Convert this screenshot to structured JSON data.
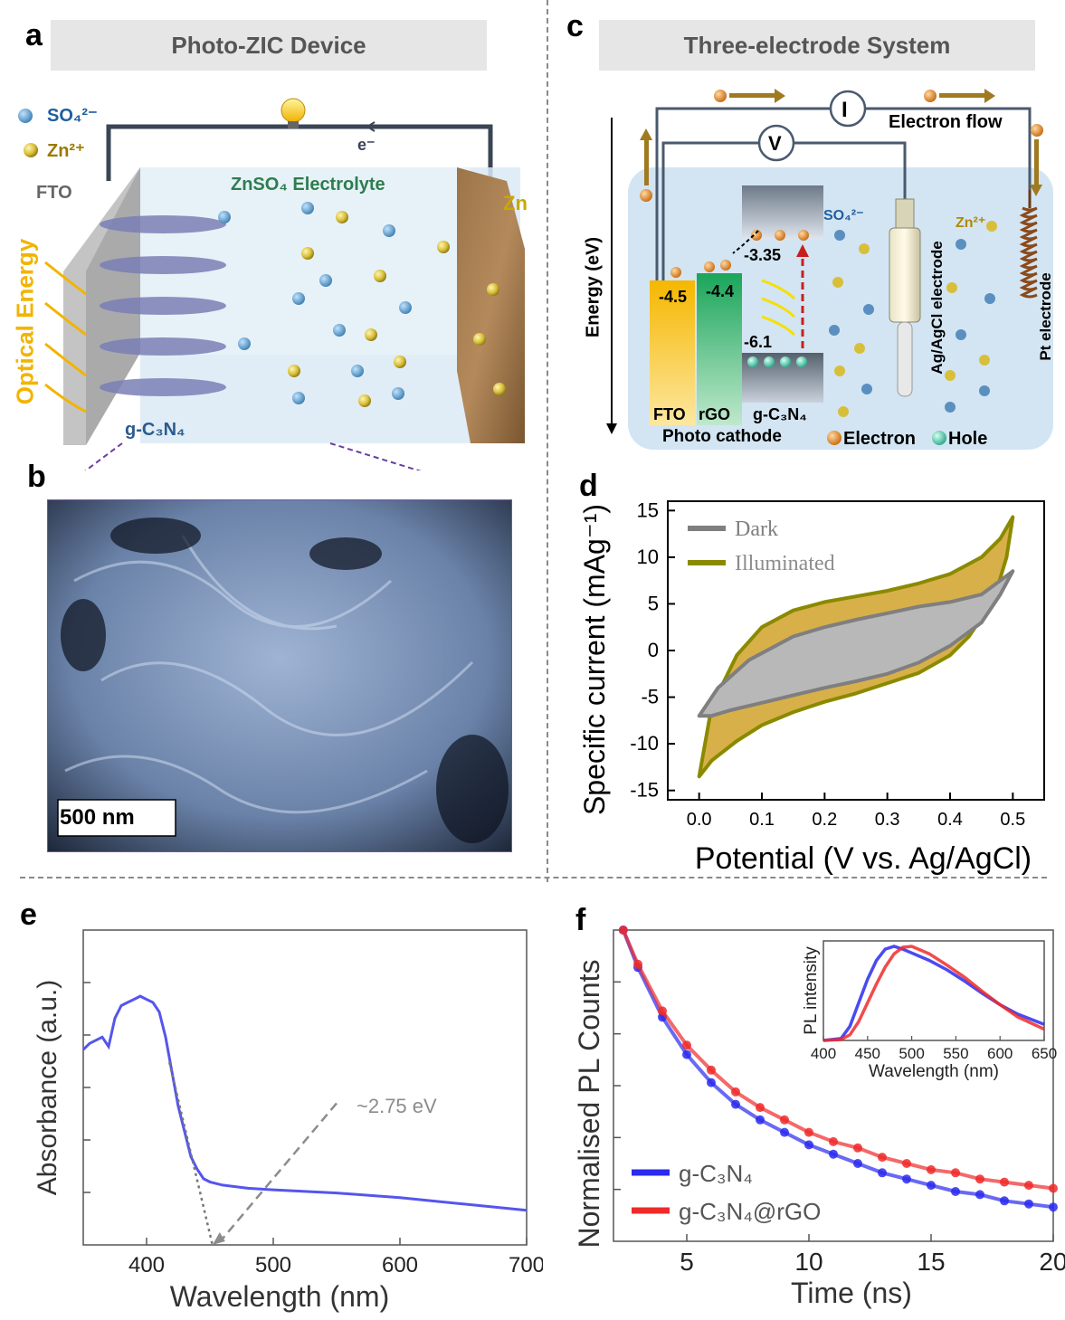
{
  "panels": {
    "a": {
      "letter": "a",
      "title": "Photo-ZIC Device",
      "legend_so4": "SO₄²⁻",
      "legend_zn": "Zn²⁺",
      "fto": "FTO",
      "electron": "e⁻",
      "electrolyte": "ZnSO₄ Electrolyte",
      "zn": "Zn",
      "optical": "Optical Energy",
      "gcn": "g-C₃N₄"
    },
    "b": {
      "letter": "b",
      "scale": "500 nm"
    },
    "c": {
      "letter": "c",
      "title": "Three-electrode System",
      "current_symbol": "I",
      "voltage_symbol": "V",
      "electron_flow": "Electron flow",
      "energy_axis": "Energy (eV)",
      "fto_level": "-4.5",
      "rgo_level": "-4.4",
      "cb_level": "-3.35",
      "vb_level": "-6.1",
      "so4": "SO₄²⁻",
      "zn": "Zn²⁺",
      "ref_electrode": "Ag/AgCl electrode",
      "pt_electrode": "Pt electrode",
      "fto_label": "FTO",
      "rgo_label": "rGO",
      "gcn_label": "g-C₃N₄",
      "photocathode": "Photo cathode",
      "electron_legend": "Electron",
      "hole_legend": "Hole"
    },
    "d": {
      "letter": "d"
    },
    "e": {
      "letter": "e",
      "annotation": "~2.75 eV"
    },
    "f": {
      "letter": "f"
    }
  },
  "colors": {
    "dark": "#7f7f7f",
    "illuminated": "#8a8a00",
    "illuminated_fill": "#d8b04a",
    "absorbance": "#5555ee",
    "gcn": "#2a2af0",
    "gcn_rgo": "#f02a2a",
    "fto_bar": "#f5b700",
    "rgo_bar": "#1aa55a"
  },
  "chart_data": [
    {
      "id": "d",
      "type": "line",
      "xlabel": "Potential (V vs. Ag/AgCl)",
      "ylabel": "Specific current (mAg⁻¹)",
      "xlim": [
        -0.05,
        0.55
      ],
      "ylim": [
        -16,
        16
      ],
      "xticks": [
        "0.0",
        "0.1",
        "0.2",
        "0.3",
        "0.4",
        "0.5"
      ],
      "yticks": [
        "15",
        "10",
        "5",
        "0",
        "-5",
        "-10",
        "-15"
      ],
      "legend": "top-left",
      "series": [
        {
          "name": "Dark",
          "x": [
            0.0,
            0.03,
            0.08,
            0.15,
            0.2,
            0.25,
            0.3,
            0.35,
            0.4,
            0.45,
            0.48,
            0.5,
            0.48,
            0.45,
            0.4,
            0.35,
            0.3,
            0.25,
            0.2,
            0.15,
            0.1,
            0.05,
            0.02,
            0.0
          ],
          "y": [
            -7,
            -4,
            -1,
            1.5,
            2.5,
            3.3,
            4,
            4.7,
            5.2,
            6,
            7.5,
            8.5,
            6,
            3,
            0.5,
            -1.3,
            -2.5,
            -3.3,
            -4,
            -4.8,
            -5.6,
            -6.4,
            -7,
            -7
          ]
        },
        {
          "name": "Illuminated",
          "x": [
            0.0,
            0.02,
            0.06,
            0.1,
            0.15,
            0.2,
            0.25,
            0.3,
            0.35,
            0.4,
            0.45,
            0.48,
            0.5,
            0.49,
            0.47,
            0.43,
            0.4,
            0.35,
            0.3,
            0.25,
            0.2,
            0.15,
            0.1,
            0.06,
            0.02,
            0.0
          ],
          "y": [
            -13.5,
            -6,
            -0.5,
            2.5,
            4.3,
            5.2,
            5.8,
            6.4,
            7.2,
            8.2,
            10,
            12,
            14.3,
            10,
            5.5,
            1.5,
            -0.5,
            -2.4,
            -3.5,
            -4.6,
            -5.5,
            -6.6,
            -8,
            -9.7,
            -11.8,
            -13.5
          ]
        }
      ]
    },
    {
      "id": "e",
      "type": "line",
      "xlabel": "Wavelength (nm)",
      "ylabel": "Absorbance (a.u.)",
      "xlim": [
        350,
        700
      ],
      "ylim": [
        0,
        1
      ],
      "xticks": [
        "400",
        "500",
        "600",
        "700"
      ],
      "series": [
        {
          "name": "",
          "x": [
            350,
            355,
            360,
            365,
            370,
            375,
            380,
            385,
            390,
            395,
            400,
            405,
            410,
            415,
            420,
            425,
            430,
            435,
            440,
            445,
            450,
            460,
            480,
            500,
            550,
            600,
            650,
            700
          ],
          "y": [
            0.62,
            0.64,
            0.65,
            0.66,
            0.63,
            0.72,
            0.76,
            0.77,
            0.78,
            0.79,
            0.78,
            0.77,
            0.74,
            0.66,
            0.55,
            0.44,
            0.36,
            0.28,
            0.24,
            0.21,
            0.2,
            0.19,
            0.18,
            0.175,
            0.165,
            0.15,
            0.13,
            0.11
          ]
        }
      ],
      "annotation_series": [
        {
          "name": "",
          "x": [
            418,
            452
          ],
          "y": [
            0.58,
            0.0
          ]
        }
      ]
    },
    {
      "id": "f",
      "type": "scatter",
      "xlabel": "Time (ns)",
      "ylabel": "Normalised PL Counts",
      "xlim": [
        2,
        20
      ],
      "ylim": [
        0,
        1
      ],
      "xticks": [
        "5",
        "10",
        "15",
        "20"
      ],
      "legend": "bottom-left",
      "series": [
        {
          "name": "g-C₃N₄",
          "x": [
            2.4,
            3,
            4,
            5,
            6,
            7,
            8,
            9,
            10,
            11,
            12,
            13,
            14,
            15,
            16,
            17,
            18,
            19,
            20
          ],
          "y": [
            1.0,
            0.88,
            0.72,
            0.6,
            0.51,
            0.44,
            0.39,
            0.35,
            0.31,
            0.28,
            0.25,
            0.22,
            0.2,
            0.18,
            0.16,
            0.15,
            0.13,
            0.12,
            0.11
          ]
        },
        {
          "name": "g-C₃N₄@rGO",
          "x": [
            2.4,
            3,
            4,
            5,
            6,
            7,
            8,
            9,
            10,
            11,
            12,
            13,
            14,
            15,
            16,
            17,
            18,
            19,
            20
          ],
          "y": [
            1.0,
            0.89,
            0.74,
            0.63,
            0.55,
            0.48,
            0.43,
            0.39,
            0.35,
            0.32,
            0.3,
            0.27,
            0.25,
            0.23,
            0.22,
            0.2,
            0.19,
            0.18,
            0.17
          ]
        }
      ],
      "inset": {
        "xlabel": "Wavelength (nm)",
        "ylabel": "PL intensity",
        "xlim": [
          400,
          650
        ],
        "xticks": [
          "400",
          "450",
          "500",
          "550",
          "600",
          "650"
        ],
        "series": [
          {
            "name": "g-C₃N₄",
            "x": [
              400,
              420,
              430,
              440,
              450,
              460,
              470,
              480,
              490,
              500,
              520,
              540,
              560,
              580,
              600,
              620,
              650
            ],
            "y": [
              0.0,
              0.02,
              0.15,
              0.4,
              0.65,
              0.85,
              0.97,
              1.0,
              0.97,
              0.93,
              0.85,
              0.75,
              0.63,
              0.5,
              0.38,
              0.28,
              0.17
            ]
          },
          {
            "name": "g-C₃N₄@rGO",
            "x": [
              400,
              420,
              430,
              440,
              450,
              460,
              470,
              480,
              490,
              500,
              520,
              540,
              560,
              580,
              600,
              620,
              650
            ],
            "y": [
              0.0,
              0.01,
              0.06,
              0.2,
              0.4,
              0.6,
              0.78,
              0.92,
              0.99,
              1.0,
              0.92,
              0.8,
              0.67,
              0.52,
              0.38,
              0.25,
              0.12
            ]
          }
        ]
      }
    }
  ]
}
